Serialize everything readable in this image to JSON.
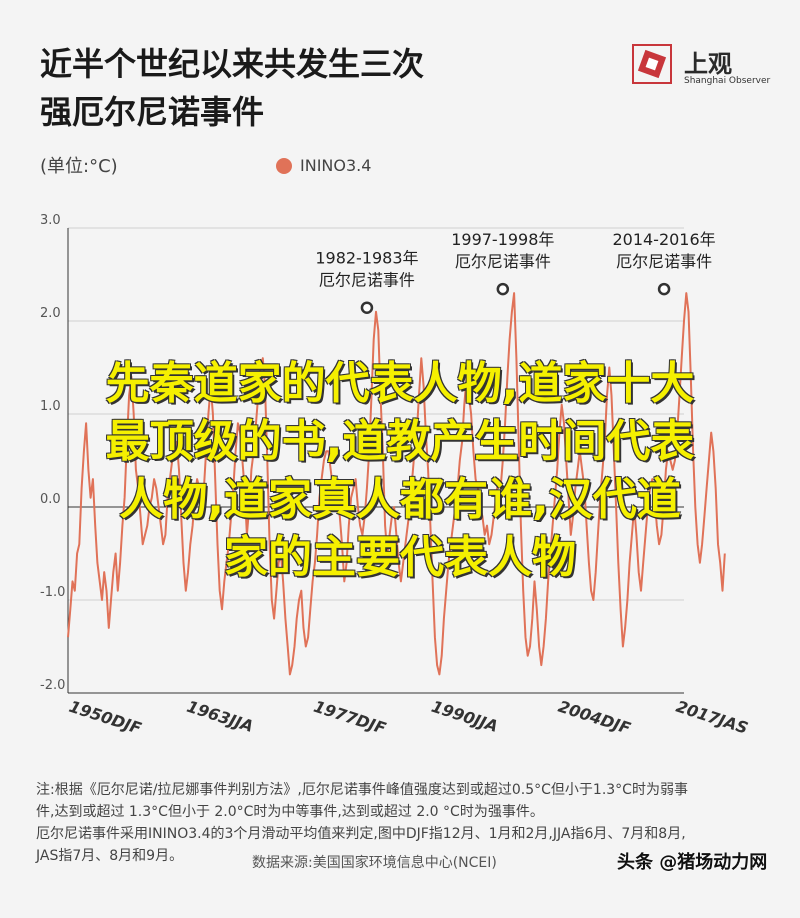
{
  "title_line1": "近半个世纪以来共发生三次",
  "title_line2": "强厄尔尼诺事件",
  "logo": {
    "name": "上观",
    "subtitle": "Shanghai Observer"
  },
  "unit_label": "(单位:°C)",
  "chart_data": {
    "type": "line",
    "series": [
      {
        "name": "ININO3.4",
        "color": "#e07258",
        "x_start": 1950.0,
        "x_step": 0.25,
        "values": [
          -1.4,
          -1.1,
          -0.8,
          -0.9,
          -0.5,
          -0.4,
          0.2,
          0.6,
          0.9,
          0.4,
          0.1,
          0.3,
          -0.2,
          -0.6,
          -0.8,
          -1.0,
          -0.7,
          -0.9,
          -1.3,
          -1.0,
          -0.7,
          -0.5,
          -0.9,
          -0.6,
          -0.2,
          0.1,
          0.7,
          1.2,
          1.4,
          1.0,
          0.4,
          0.2,
          -0.1,
          -0.4,
          -0.3,
          -0.2,
          0.0,
          0.1,
          0.3,
          0.2,
          0.0,
          -0.2,
          -0.4,
          -0.3,
          0.1,
          0.3,
          0.5,
          0.6,
          0.7,
          0.4,
          -0.1,
          -0.6,
          -0.9,
          -0.7,
          -0.4,
          -0.2,
          0.1,
          0.3,
          0.2,
          -0.1,
          0.2,
          0.6,
          1.0,
          1.3,
          1.0,
          0.3,
          -0.4,
          -0.9,
          -1.1,
          -0.8,
          -0.6,
          -0.4,
          -0.1,
          0.2,
          0.6,
          0.9,
          0.8,
          0.5,
          0.2,
          -0.3,
          0.0,
          0.4,
          0.6,
          0.9,
          1.2,
          1.5,
          1.6,
          1.3,
          0.5,
          -0.4,
          -1.0,
          -1.2,
          -0.9,
          -0.6,
          -0.5,
          -0.8,
          -1.2,
          -1.5,
          -1.8,
          -1.7,
          -1.5,
          -1.2,
          -1.0,
          -0.9,
          -1.3,
          -1.5,
          -1.4,
          -1.1,
          -0.8,
          -0.6,
          -0.3,
          0.1,
          0.3,
          0.5,
          0.6,
          0.6,
          0.4,
          0.2,
          0.1,
          0.0,
          -0.1,
          -0.4,
          -0.8,
          -0.6,
          -0.2,
          0.1,
          0.2,
          0.3,
          0.0,
          -0.2,
          -0.3,
          -0.1,
          0.2,
          0.6,
          1.2,
          1.8,
          2.1,
          1.9,
          1.2,
          0.6,
          -0.2,
          -0.5,
          -0.3,
          -0.1,
          0.0,
          -0.3,
          -0.6,
          -0.8,
          -0.6,
          -0.4,
          -0.2,
          0.0,
          0.3,
          0.6,
          0.8,
          1.2,
          1.6,
          1.3,
          0.8,
          0.4,
          -0.2,
          -0.8,
          -1.4,
          -1.7,
          -1.8,
          -1.6,
          -1.2,
          -0.9,
          -0.6,
          -0.4,
          -0.2,
          0.0,
          0.2,
          0.5,
          0.7,
          1.1,
          1.4,
          1.2,
          1.0,
          0.6,
          0.3,
          0.2,
          0.0,
          -0.1,
          -0.3,
          -0.2,
          -0.4,
          -0.3,
          -0.1,
          0.1,
          0.3,
          0.2,
          0.5,
          0.9,
          1.4,
          1.8,
          2.1,
          2.3,
          1.6,
          0.7,
          -0.2,
          -0.9,
          -1.4,
          -1.6,
          -1.5,
          -1.2,
          -0.8,
          -1.1,
          -1.5,
          -1.7,
          -1.5,
          -1.2,
          -0.8,
          -0.5,
          -0.2,
          0.1,
          0.4,
          0.8,
          1.1,
          0.9,
          0.5,
          0.1,
          -0.3,
          -0.1,
          0.2,
          0.4,
          0.6,
          0.4,
          0.2,
          -0.2,
          -0.6,
          -0.9,
          -1.0,
          -0.7,
          -0.3,
          0.1,
          0.4,
          0.7,
          1.2,
          1.5,
          1.2,
          0.6,
          0.0,
          -0.6,
          -1.1,
          -1.5,
          -1.3,
          -1.0,
          -0.6,
          -0.3,
          0.0,
          -0.3,
          -0.7,
          -0.9,
          -0.6,
          -0.3,
          0.0,
          0.2,
          0.3,
          0.1,
          -0.2,
          -0.4,
          -0.3,
          0.0,
          0.4,
          0.6,
          0.5,
          0.4,
          0.5,
          0.8,
          1.2,
          1.6,
          2.0,
          2.3,
          2.1,
          1.4,
          0.6,
          0.0,
          -0.4,
          -0.6,
          -0.4,
          -0.1,
          0.2,
          0.5,
          0.8,
          0.6,
          0.2,
          -0.4,
          -0.6,
          -0.9,
          -0.5
        ],
        "peaks": [
          {
            "x": 1983.0,
            "y": 2.1,
            "label1": "1982-1983年",
            "label2": "厄尔尼诺事件"
          },
          {
            "x": 1998.0,
            "y": 2.3,
            "label1": "1997-1998年",
            "label2": "厄尔尼诺事件"
          },
          {
            "x": 2015.8,
            "y": 2.3,
            "label1": "2014-2016年",
            "label2": "厄尔尼诺事件"
          }
        ]
      }
    ],
    "ylim": [
      -2.0,
      3.0
    ],
    "xlim": [
      1950.0,
      2018.0
    ],
    "yticks": [
      {
        "value": 3.0,
        "label": "3.0"
      },
      {
        "value": 2.0,
        "label": "2.0"
      },
      {
        "value": 1.0,
        "label": "1.0"
      },
      {
        "value": 0.0,
        "label": "0.0"
      },
      {
        "value": -1.0,
        "label": "-1.0"
      },
      {
        "value": -2.0,
        "label": "-2.0"
      }
    ],
    "xticks": [
      {
        "value": 1950.0,
        "label": "1950DJF"
      },
      {
        "value": 1963.0,
        "label": "1963JJA"
      },
      {
        "value": 1977.0,
        "label": "1977DJF"
      },
      {
        "value": 1990.0,
        "label": "1990JJA"
      },
      {
        "value": 2004.0,
        "label": "2004DJF"
      },
      {
        "value": 2017.0,
        "label": "2017JAS"
      }
    ],
    "grid": true
  },
  "overlay_text": [
    "先秦道家的代表人物,道家十大",
    "最顶级的书,道教产生时间代表",
    "人物,道家真人都有谁,汉代道",
    "家的主要代表人物"
  ],
  "note_lines": [
    "注:根据《厄尔尼诺/拉尼娜事件判别方法》,厄尔尼诺事件峰值强度达到或超过0.5°C但小于1.3°C时为弱事",
    "件,达到或超过 1.3°C但小于 2.0°C时为中等事件,达到或超过 2.0 °C时为强事件。",
    "厄尔尼诺事件采用ININO3.4的3个月滑动平均值来判定,图中DJF指12月、1月和2月,JJA指6月、7月和8月,",
    "JAS指7月、8月和9月。"
  ],
  "source": "数据来源:美国国家环境信息中心(NCEI)",
  "watermark": "头条 @猪场动力网"
}
